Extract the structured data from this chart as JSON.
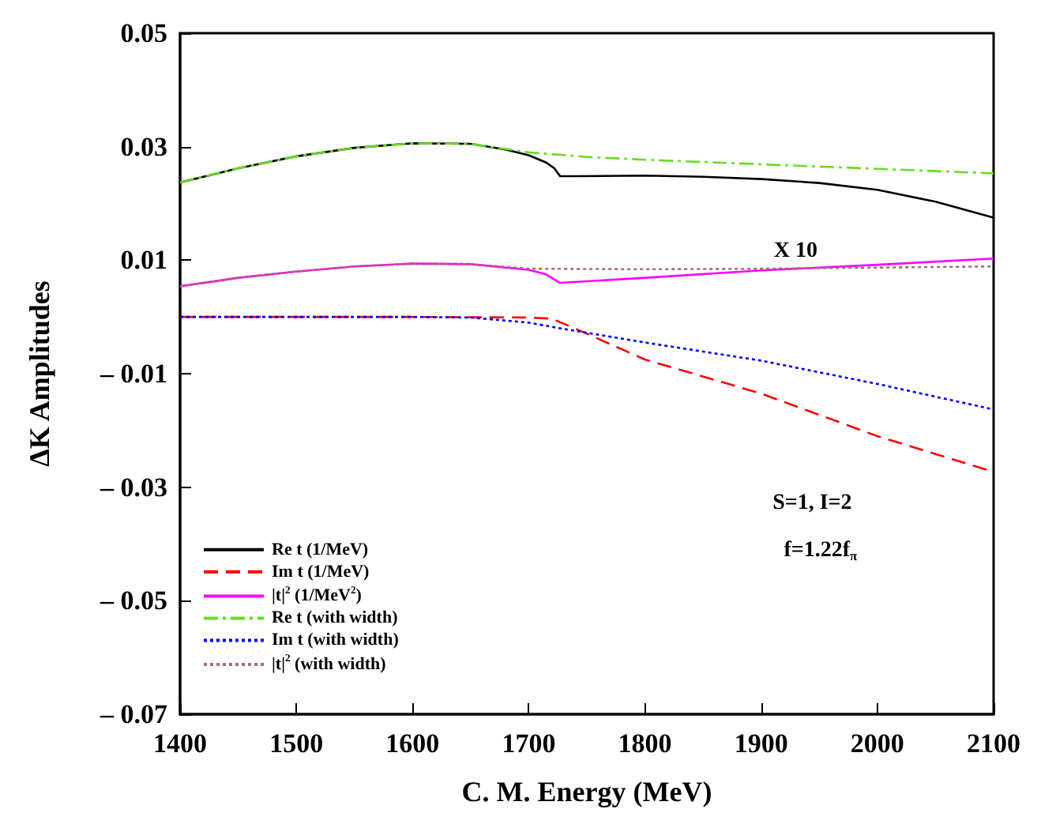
{
  "chart_data": {
    "type": "line",
    "xlabel": "C. M. Energy (MeV)",
    "ylabel": "ΔK Amplitudes",
    "xlim": [
      1400,
      2100
    ],
    "xticks": [
      1400,
      1500,
      1600,
      1700,
      1800,
      1900,
      2000,
      2100
    ],
    "ylim": [
      -0.07,
      0.05
    ],
    "yticks": [
      {
        "value": -0.07,
        "label": "– 0.07"
      },
      {
        "value": -0.05,
        "label": "– 0.05"
      },
      {
        "value": -0.03,
        "label": "– 0.03"
      },
      {
        "value": -0.01,
        "label": "– 0.01"
      },
      0.01,
      0.03,
      0.05
    ],
    "grid": false,
    "legend": "bottom left",
    "marker": "none",
    "series": [
      {
        "name": "Re t (1/MeV)",
        "color": "#000000",
        "line_style": "solid",
        "x": [
          1400,
          1450,
          1500,
          1550,
          1600,
          1650,
          1680,
          1700,
          1715,
          1722,
          1727,
          1740,
          1800,
          1850,
          1900,
          1950,
          2000,
          2050,
          2100
        ],
        "values": [
          0.0237,
          0.0262,
          0.0283,
          0.0298,
          0.0306,
          0.0305,
          0.0295,
          0.0285,
          0.0272,
          0.0262,
          0.0248,
          0.0248,
          0.0249,
          0.0247,
          0.0243,
          0.0236,
          0.0224,
          0.0203,
          0.0175
        ]
      },
      {
        "name": "Im t (1/MeV)",
        "color": "#ff0000",
        "line_style": "dashed",
        "x": [
          1400,
          1500,
          1600,
          1700,
          1720,
          1728,
          1745,
          1800,
          1900,
          2000,
          2100
        ],
        "values": [
          0,
          0,
          0,
          -0.0001,
          -0.0003,
          -0.001,
          -0.0025,
          -0.0075,
          -0.0135,
          -0.021,
          -0.0273
        ]
      },
      {
        "name": "|t|$^{2}$ (1/MeV$^{2}$)",
        "color": "#ff00ff",
        "line_style": "solid",
        "x": [
          1400,
          1450,
          1500,
          1550,
          1600,
          1650,
          1700,
          1715,
          1727,
          1800,
          1900,
          2000,
          2100
        ],
        "values": [
          0.0054,
          0.0069,
          0.008,
          0.0089,
          0.0094,
          0.0093,
          0.0083,
          0.0075,
          0.006,
          0.0069,
          0.0082,
          0.0092,
          0.0103
        ]
      },
      {
        "name": "Re t (with width)",
        "color": "#66dd22",
        "line_style": "dashdot",
        "x": [
          1400,
          1450,
          1500,
          1550,
          1600,
          1650,
          1680,
          1700,
          1750,
          1800,
          1900,
          2000,
          2100
        ],
        "values": [
          0.0237,
          0.0262,
          0.0283,
          0.0298,
          0.0306,
          0.0305,
          0.0296,
          0.029,
          0.0282,
          0.0277,
          0.0269,
          0.0261,
          0.0253
        ]
      },
      {
        "name": "Im t (with width)",
        "color": "#0000ff",
        "line_style": "dotted",
        "x": [
          1400,
          1500,
          1600,
          1650,
          1700,
          1727,
          1800,
          1900,
          2000,
          2100
        ],
        "values": [
          0,
          0,
          0,
          -0.0001,
          -0.001,
          -0.002,
          -0.0045,
          -0.0077,
          -0.0118,
          -0.0163
        ]
      },
      {
        "name": "|t|$^{2}$ (with width)",
        "color": "#a07070",
        "line_style": "dotted",
        "x": [
          1400,
          1450,
          1500,
          1550,
          1600,
          1650,
          1700,
          1800,
          1900,
          2000,
          2100
        ],
        "values": [
          0.0054,
          0.0069,
          0.008,
          0.0089,
          0.0094,
          0.0093,
          0.0085,
          0.0084,
          0.0085,
          0.0087,
          0.0089
        ]
      }
    ],
    "annotations": [
      "X 10",
      "S=1, I=2",
      "f=1.22f$_{π}$"
    ]
  }
}
